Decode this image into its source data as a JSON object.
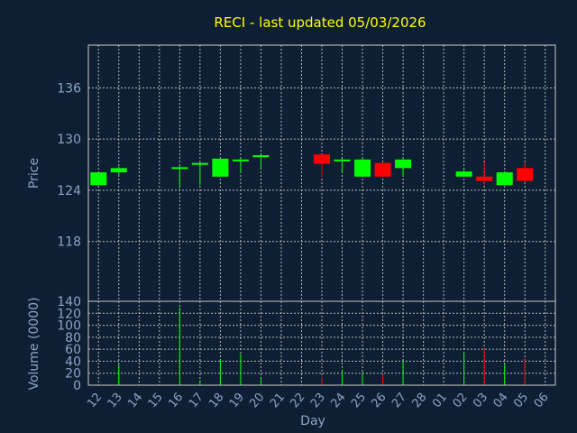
{
  "chart_data": {
    "type": "candlestick",
    "title": "RECI - last updated 05/03/2026",
    "xlabel": "Day",
    "price_panel": {
      "ylabel": "Price",
      "ylim": [
        111,
        141
      ],
      "yticks": [
        118,
        124,
        130,
        136
      ],
      "grid": true
    },
    "volume_panel": {
      "ylabel": "Volume (0000)",
      "ylim": [
        0,
        140
      ],
      "yticks": [
        0,
        20,
        40,
        60,
        80,
        100,
        120,
        140
      ],
      "grid": true
    },
    "x_labels": [
      "12",
      "13",
      "14",
      "15",
      "16",
      "17",
      "18",
      "19",
      "20",
      "21",
      "22",
      "23",
      "24",
      "25",
      "26",
      "27",
      "28",
      "01",
      "02",
      "03",
      "04",
      "05",
      "06"
    ],
    "up_color": "#00ff00",
    "down_color": "#ff0000",
    "candles": [
      {
        "x": "12",
        "open": 124.6,
        "high": 126.1,
        "low": 124.6,
        "close": 126.1,
        "volume": 0
      },
      {
        "x": "13",
        "open": 126.1,
        "high": 126.8,
        "low": 125.6,
        "close": 126.6,
        "volume": 35
      },
      {
        "x": "16",
        "open": 126.5,
        "high": 126.9,
        "low": 124.2,
        "close": 126.7,
        "volume": 130
      },
      {
        "x": "17",
        "open": 127.0,
        "high": 127.3,
        "low": 124.6,
        "close": 127.2,
        "volume": 8
      },
      {
        "x": "18",
        "open": 125.6,
        "high": 127.7,
        "low": 125.6,
        "close": 127.7,
        "volume": 42
      },
      {
        "x": "19",
        "open": 127.4,
        "high": 127.7,
        "low": 126.1,
        "close": 127.6,
        "volume": 52
      },
      {
        "x": "20",
        "open": 128.0,
        "high": 128.3,
        "low": 126.6,
        "close": 128.1,
        "volume": 12
      },
      {
        "x": "23",
        "open": 128.2,
        "high": 128.2,
        "low": 125.6,
        "close": 127.1,
        "volume": 14
      },
      {
        "x": "24",
        "open": 127.5,
        "high": 127.7,
        "low": 126.1,
        "close": 127.6,
        "volume": 26
      },
      {
        "x": "25",
        "open": 125.6,
        "high": 127.7,
        "low": 125.6,
        "close": 127.6,
        "volume": 22
      },
      {
        "x": "26",
        "open": 127.2,
        "high": 127.3,
        "low": 125.6,
        "close": 125.6,
        "volume": 18
      },
      {
        "x": "27",
        "open": 126.6,
        "high": 127.7,
        "low": 125.6,
        "close": 127.6,
        "volume": 40
      },
      {
        "x": "02",
        "open": 125.6,
        "high": 126.5,
        "low": 125.6,
        "close": 126.2,
        "volume": 55
      },
      {
        "x": "03",
        "open": 125.6,
        "high": 127.3,
        "low": 124.6,
        "close": 125.1,
        "volume": 62
      },
      {
        "x": "04",
        "open": 124.6,
        "high": 126.2,
        "low": 124.6,
        "close": 126.1,
        "volume": 35
      },
      {
        "x": "05",
        "open": 126.6,
        "high": 127.2,
        "low": 124.9,
        "close": 125.1,
        "volume": 45
      }
    ]
  }
}
